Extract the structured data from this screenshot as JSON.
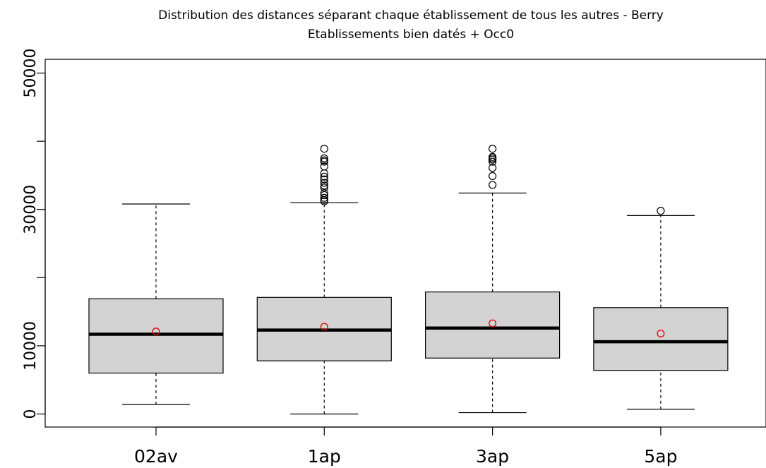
{
  "chart_data": {
    "type": "boxplot",
    "title": "Distribution des distances séparant chaque établissement de tous les autres - Berry",
    "subtitle": "Etablissements bien datés + Occ0",
    "xlabel": "",
    "ylabel": "",
    "ylim": [
      0,
      50000
    ],
    "yticks": [
      0,
      10000,
      30000,
      50000
    ],
    "grid": false,
    "categories": [
      "02av",
      "1ap",
      "3ap",
      "5ap"
    ],
    "boxes": [
      {
        "name": "02av",
        "whisker_low": 1400,
        "q1": 6000,
        "median": 11700,
        "q3": 16900,
        "whisker_high": 30800,
        "mean": 12100,
        "outliers": []
      },
      {
        "name": "1ap",
        "whisker_low": 0,
        "q1": 7800,
        "median": 12300,
        "q3": 17100,
        "whisker_high": 31000,
        "mean": 12800,
        "outliers": [
          31200,
          31400,
          31700,
          32100,
          32400,
          33200,
          33500,
          33900,
          34400,
          34800,
          35300,
          36300,
          37000,
          37200,
          37500,
          38900
        ]
      },
      {
        "name": "3ap",
        "whisker_low": 200,
        "q1": 8200,
        "median": 12600,
        "q3": 17900,
        "whisker_high": 32400,
        "mean": 13300,
        "outliers": [
          33600,
          34900,
          36100,
          37000,
          37300,
          37500,
          37700,
          38900
        ]
      },
      {
        "name": "5ap",
        "whisker_low": 700,
        "q1": 6400,
        "median": 10600,
        "q3": 15600,
        "whisker_high": 29100,
        "mean": 11800,
        "outliers": [
          29800
        ]
      }
    ],
    "colors": {
      "box_fill": "#d3d3d3",
      "box_stroke": "#000000",
      "mean_marker": "#e00000"
    }
  }
}
